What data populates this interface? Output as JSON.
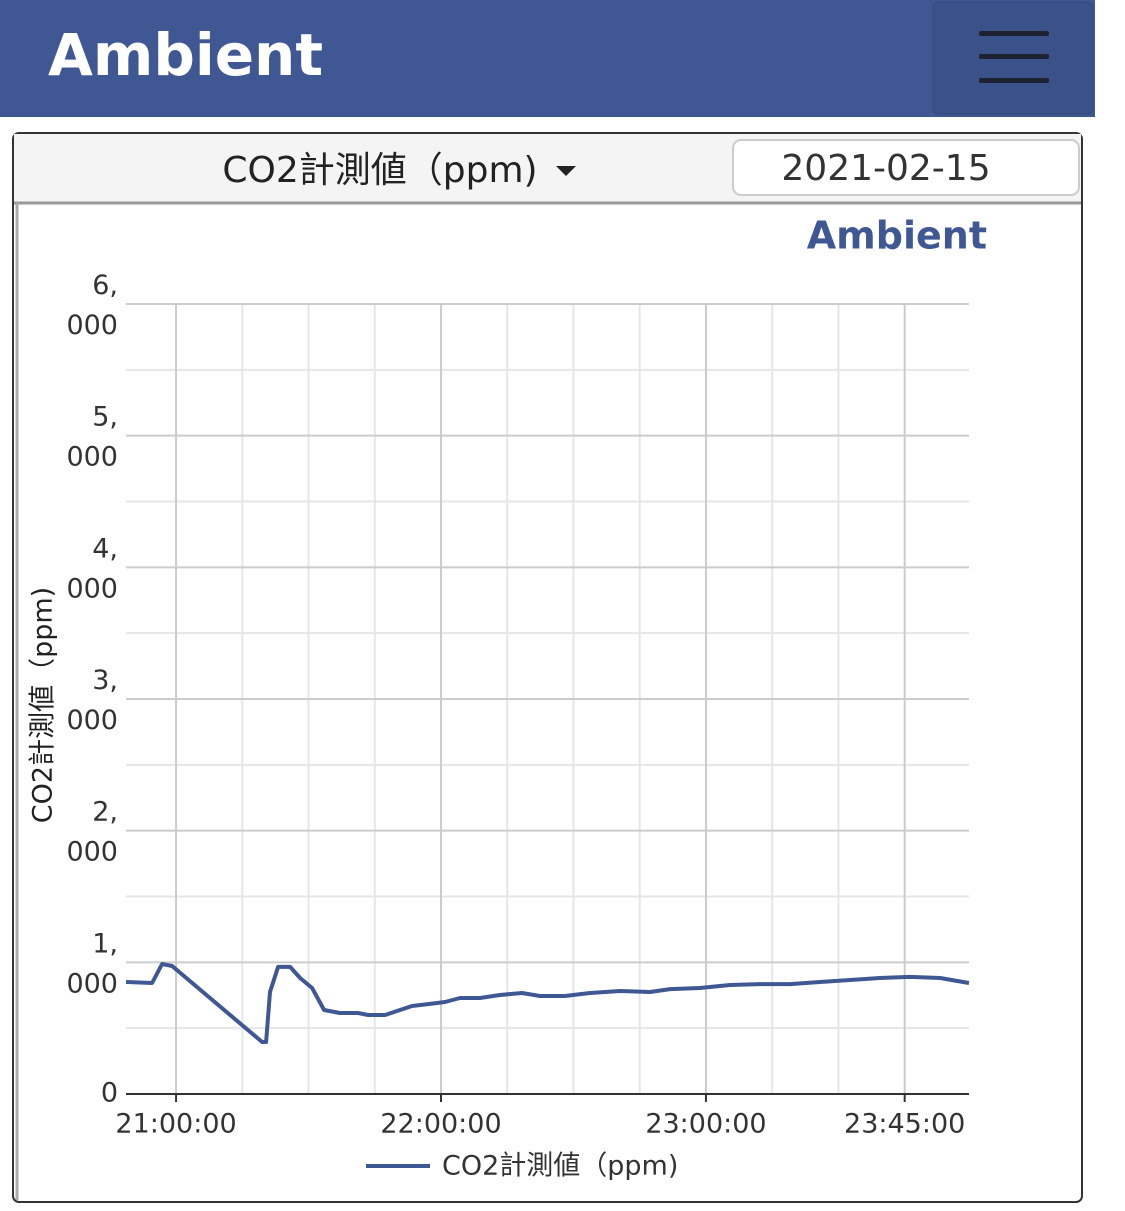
{
  "header": {
    "title": "Ambient"
  },
  "toolbar": {
    "selector": "CO2計測値（ppm)",
    "date": "2021-02-15"
  },
  "chart_data": {
    "type": "line",
    "logo": "Ambient",
    "y_label": "CO2計測値（ppm)",
    "x": [
      "20:48:40",
      "20:54:34",
      "20:56:50",
      "20:59:06",
      "21:19:29",
      "21:20:23",
      "21:21:17",
      "21:23:06",
      "21:25:49",
      "21:28:05",
      "21:30:48",
      "21:33:31",
      "21:37:08",
      "21:41:13",
      "21:43:29",
      "21:47:20",
      "21:50:43",
      "21:53:26",
      "21:57:31",
      "22:00:54",
      "22:04:18",
      "22:08:50",
      "22:13:22",
      "22:18:21",
      "22:22:25",
      "22:28:05",
      "22:33:45",
      "22:40:32",
      "22:47:20",
      "22:51:51",
      "22:58:39",
      "23:05:26",
      "23:12:14",
      "23:19:02",
      "23:25:49",
      "23:32:37",
      "23:39:24",
      "23:46:12",
      "23:53:00",
      "23:59:34"
    ],
    "series": [
      {
        "name": "CO2計測値（ppm)",
        "color": "#3f5893",
        "values": [
          851,
          843,
          987,
          972,
          395,
          395,
          775,
          965,
          965,
          881,
          805,
          638,
          615,
          615,
          600,
          600,
          638,
          668,
          684,
          699,
          729,
          729,
          752,
          767,
          744,
          744,
          767,
          782,
          775,
          797,
          805,
          828,
          835,
          835,
          851,
          866,
          881,
          889,
          881,
          843
        ]
      }
    ],
    "xlim": [
      "20:48:40",
      "23:59:34"
    ],
    "xticks": [
      "21:00:00",
      "22:00:00",
      "23:00:00",
      "23:45:00"
    ],
    "xgrid": [
      "21:00:00",
      "21:15:00",
      "21:30:00",
      "21:45:00",
      "22:00:00",
      "22:15:00",
      "22:30:00",
      "22:45:00",
      "23:00:00",
      "23:15:00",
      "23:30:00",
      "23:45:00"
    ],
    "ylim": [
      0,
      6000
    ],
    "yticks": [
      0,
      {
        "value": 1000,
        "label": "1,000"
      },
      {
        "value": 2000,
        "label": "2,000"
      },
      {
        "value": 3000,
        "label": "3,000"
      },
      {
        "value": 4000,
        "label": "4,000"
      },
      {
        "value": 5000,
        "label": "5,000"
      },
      {
        "value": 6000,
        "label": "6,000"
      }
    ],
    "yminor": [
      500,
      1500,
      2500,
      3500,
      4500,
      5500
    ],
    "grid": true,
    "legend": "bottom"
  }
}
